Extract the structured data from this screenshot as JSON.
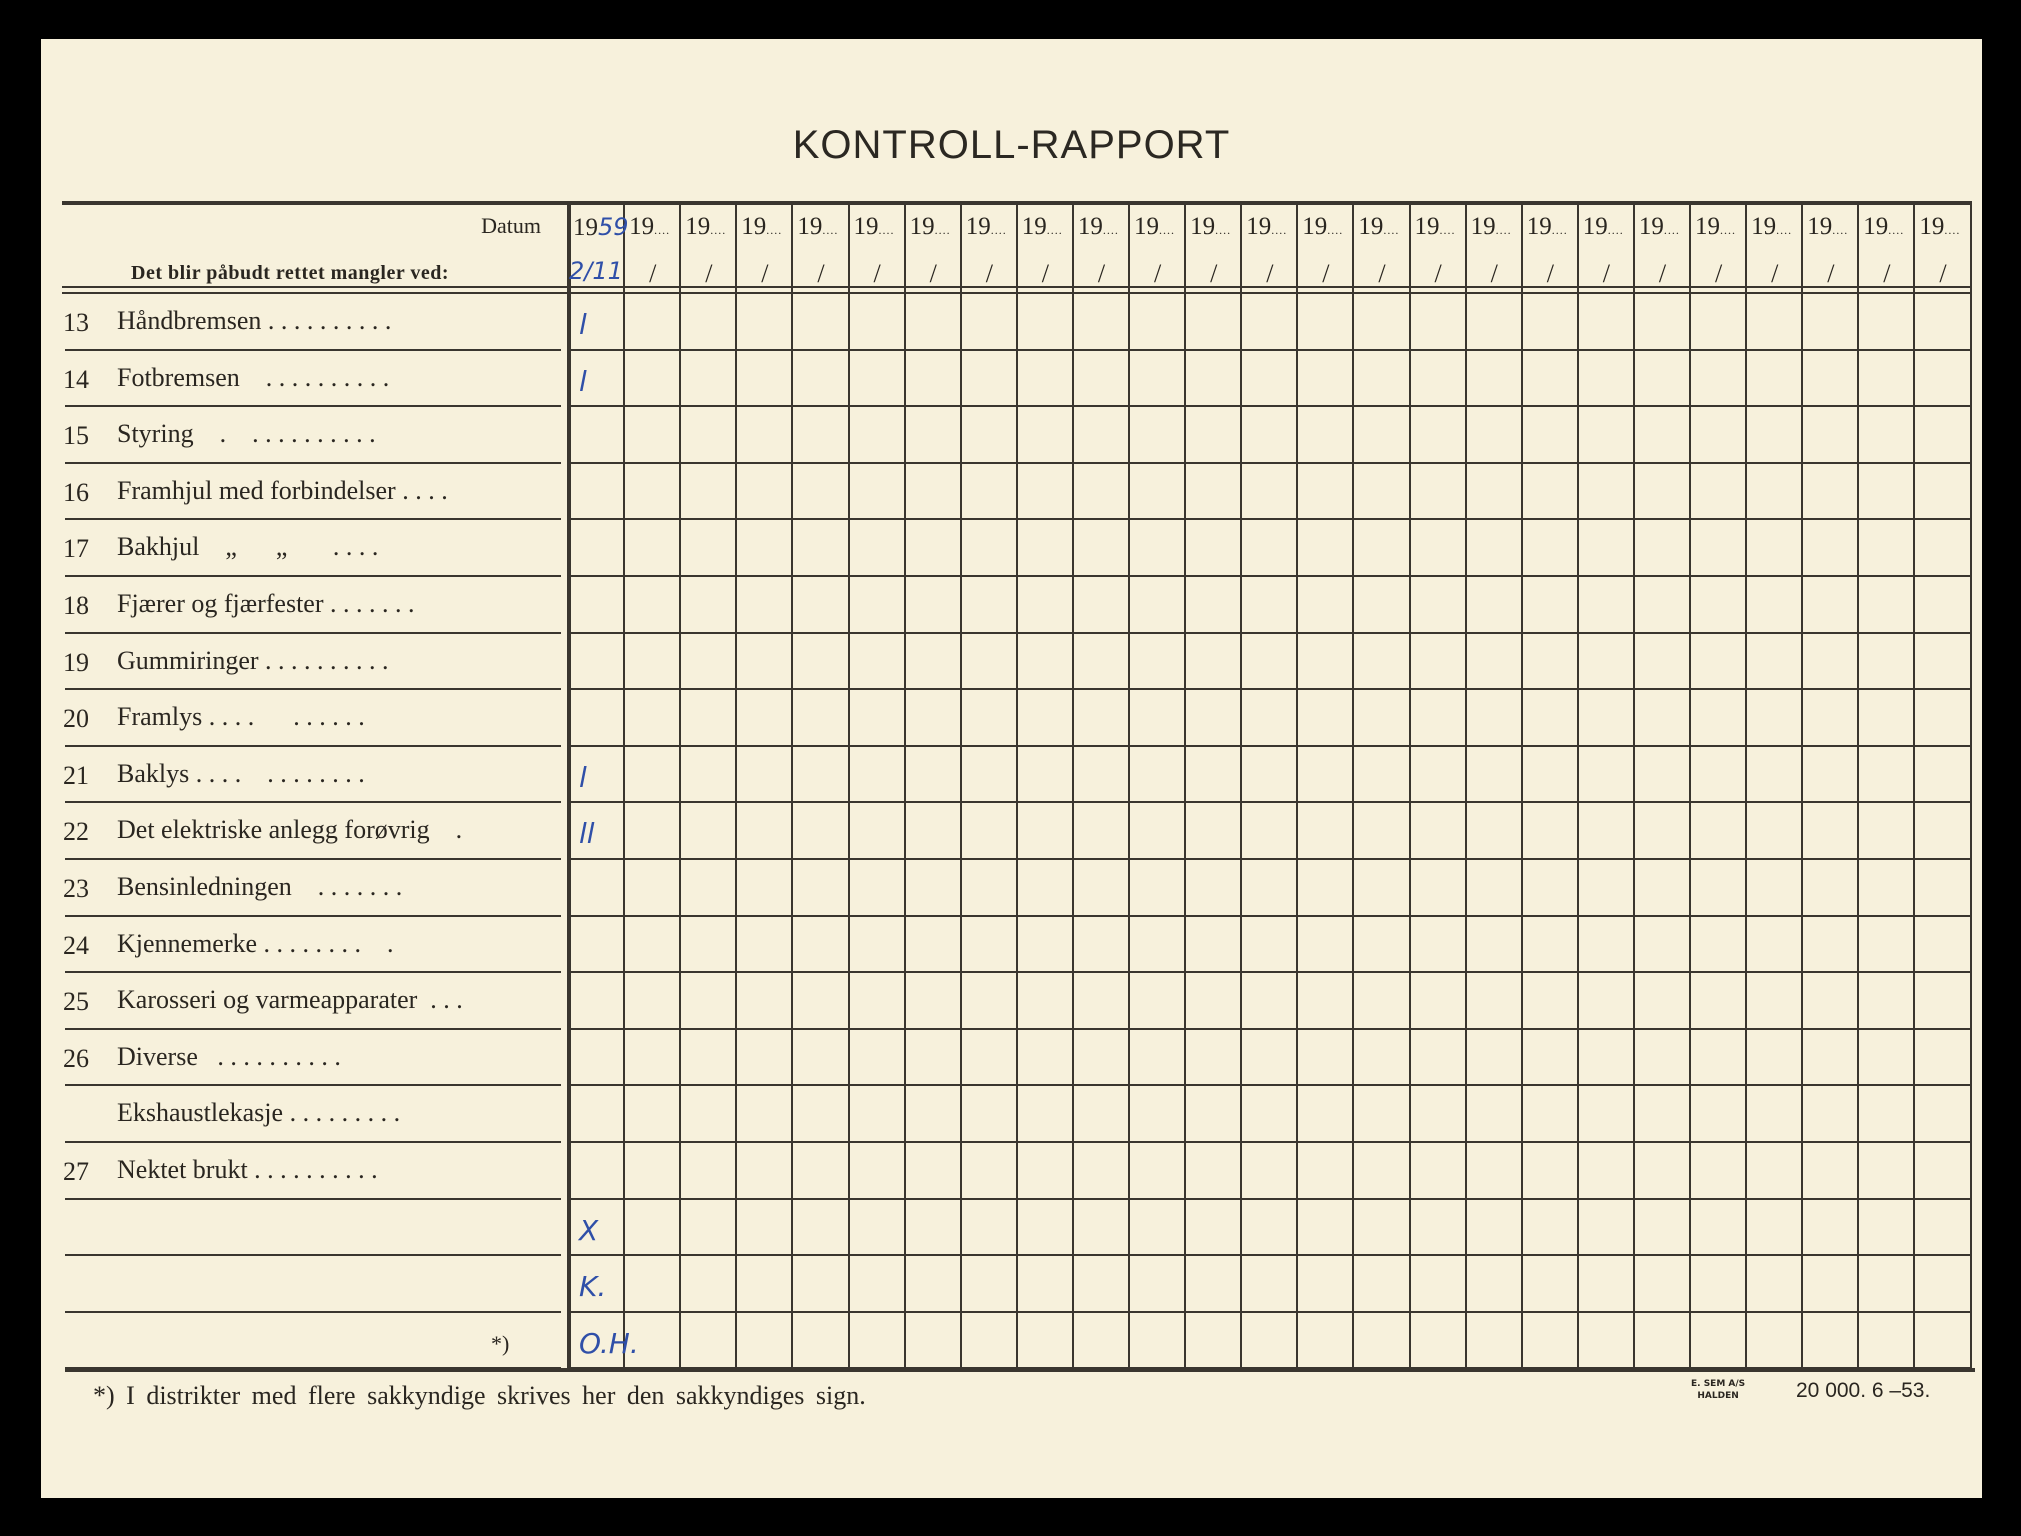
{
  "title": "KONTROLL-RAPPORT",
  "header": {
    "datum_label": "Datum",
    "instruction": "Det blir påbudt rettet mangler ved:",
    "year_prefix": "19",
    "date_separator": "/",
    "column_count": 25
  },
  "rows": [
    {
      "num": "13",
      "label": "Håndbremsen . . . . . . . . . ."
    },
    {
      "num": "14",
      "label": "Fotbremsen    . . . . . . . . . ."
    },
    {
      "num": "15",
      "label": "Styring    .    . . . . . . . . . ."
    },
    {
      "num": "16",
      "label": "Framhjul med forbindelser . . . ."
    },
    {
      "num": "17",
      "label": "Bakhjul    „      „       . . . ."
    },
    {
      "num": "18",
      "label": "Fjærer og fjærfester . . . . . . ."
    },
    {
      "num": "19",
      "label": "Gummiringer . . . . . . . . . ."
    },
    {
      "num": "20",
      "label": "Framlys . . . .      . . . . . ."
    },
    {
      "num": "21",
      "label": "Baklys . . . .    . . . . . . . ."
    },
    {
      "num": "22",
      "label": "Det elektriske anlegg forøvrig    ."
    },
    {
      "num": "23",
      "label": "Bensinledningen    . . . . . . ."
    },
    {
      "num": "24",
      "label": "Kjennemerke . . . . . . . .    ."
    },
    {
      "num": "25",
      "label": "Karosseri og varmeapparater  . . ."
    },
    {
      "num": "26",
      "label": "Diverse   . . . . . . . . . ."
    },
    {
      "num": "",
      "label": "Ekshaustlekasje . . . . . . . . ."
    },
    {
      "num": "27",
      "label": "Nektet brukt . . . . . . . . . ."
    },
    {
      "num": "",
      "label": ""
    },
    {
      "num": "",
      "label": ""
    },
    {
      "num": "",
      "label": ""
    }
  ],
  "signature_marker": "*)",
  "handwritten": {
    "year": "59",
    "date": "2/11",
    "marks": [
      {
        "row": 0,
        "text": "l"
      },
      {
        "row": 1,
        "text": "l"
      },
      {
        "row": 8,
        "text": "l"
      },
      {
        "row": 9,
        "text": "ll"
      },
      {
        "row": 16,
        "text": "X"
      },
      {
        "row": 17,
        "text": "K."
      },
      {
        "row": 18,
        "text": "O.H."
      }
    ]
  },
  "footnote": "*)  I distrikter med flere sakkyndige skrives her den sakkyndiges sign.",
  "printer": {
    "line1": "E. SEM A/S",
    "line2": "HALDEN"
  },
  "print_info": "20 000.   6 –53.",
  "colors": {
    "paper": "#f7f1dc",
    "ink": "#2a2620",
    "handwriting": "#2f4fa8"
  }
}
